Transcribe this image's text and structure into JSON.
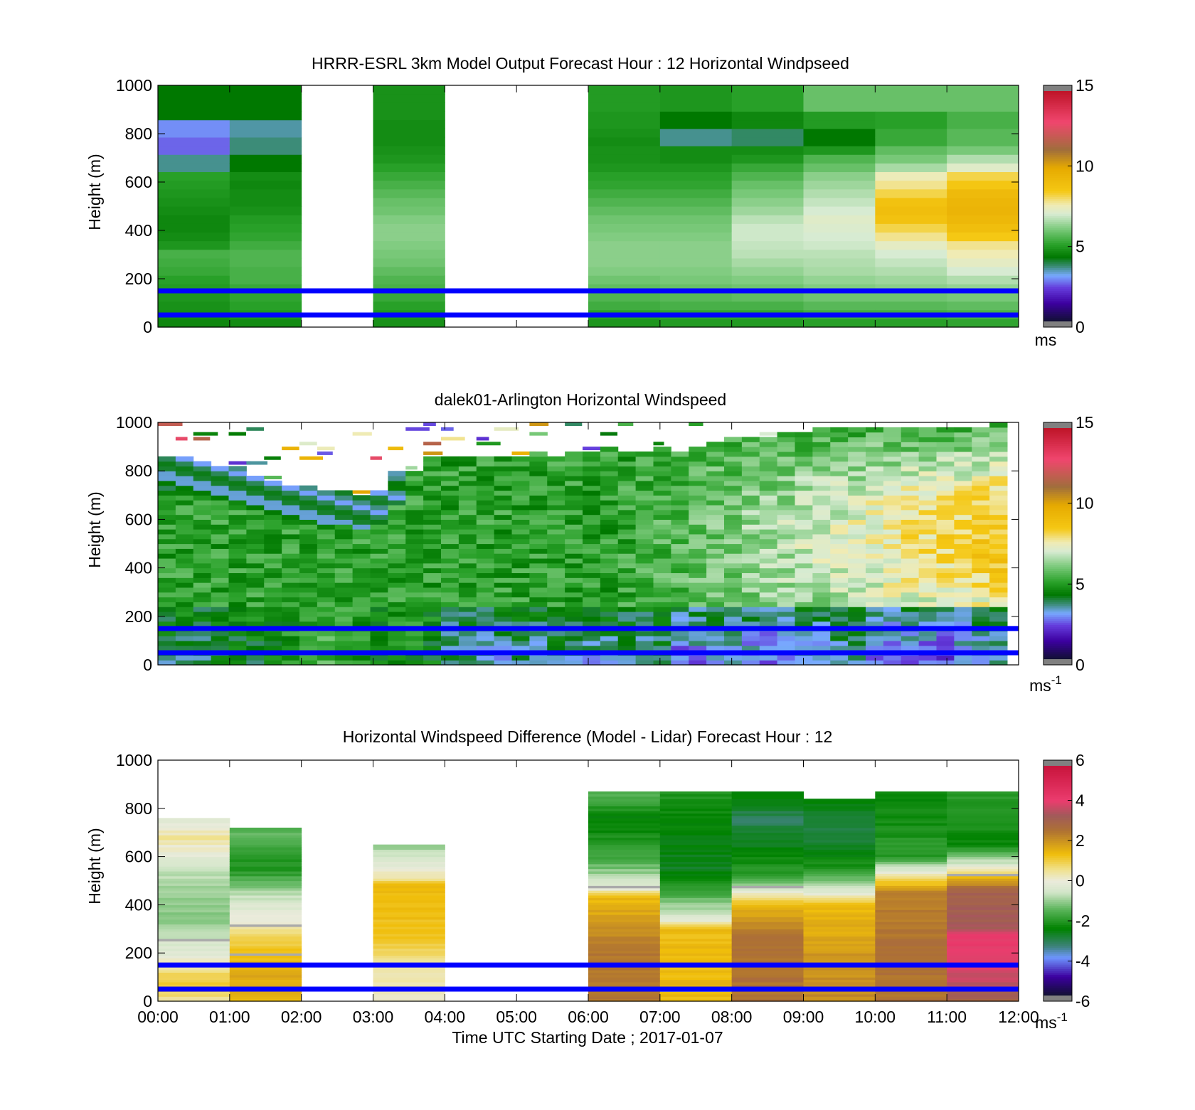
{
  "figure": {
    "xlabel": "Time UTC  Starting Date ; 2017-01-07"
  },
  "colors": {
    "blue_line": "#0000ff",
    "frame": "#000000"
  },
  "chart_data": [
    {
      "type": "heatmap",
      "title": "HRRR-ESRL 3km Model Output   Forecast Hour : 12 Horizontal Windpseed",
      "ylabel": "Height (m)",
      "ylim": [
        0,
        1000
      ],
      "yticks": [
        "0",
        "200",
        "400",
        "600",
        "800",
        "1000"
      ],
      "x_range": [
        "00:00",
        "12:00"
      ],
      "colorbar": {
        "min": 0,
        "max": 15,
        "ticks": [
          "0",
          "5",
          "10",
          "15"
        ],
        "unit_label": "ms",
        "scale": "wind"
      },
      "reference_lines_m": [
        50,
        150
      ],
      "columns": [
        {
          "start": "00:00",
          "end": "01:00",
          "top_m": 1000,
          "z": [
            4.5,
            4.6,
            4.7,
            4.8,
            4.9,
            5.0,
            5.2,
            5.3,
            5.4,
            4.8,
            4.6,
            4.5,
            4.5,
            4.6,
            4.7,
            4.8,
            4.9,
            5.0,
            3.5,
            3.5,
            2.5,
            2.5,
            2.8,
            2.8,
            4.2,
            4.2,
            4.2,
            4.2
          ]
        },
        {
          "start": "01:00",
          "end": "02:00",
          "top_m": 1000,
          "z": [
            4.6,
            4.8,
            5.0,
            5.1,
            5.2,
            5.4,
            5.4,
            5.5,
            5.5,
            5.3,
            5.1,
            5.0,
            4.9,
            4.7,
            4.6,
            4.6,
            4.5,
            4.6,
            4.2,
            4.2,
            3.6,
            3.6,
            3.4,
            3.4,
            4.2,
            4.2,
            4.2,
            4.2
          ]
        },
        {
          "start": "02:00",
          "end": "03:00",
          "top_m": 0,
          "z": []
        },
        {
          "start": "03:00",
          "end": "04:00",
          "top_m": 1000,
          "z": [
            4.7,
            4.8,
            5.0,
            5.2,
            5.4,
            5.5,
            5.7,
            5.9,
            6.0,
            6.1,
            6.2,
            6.2,
            6.1,
            5.9,
            5.8,
            5.6,
            5.4,
            5.2,
            5.0,
            4.8,
            4.7,
            4.6,
            4.6,
            4.6,
            4.7,
            4.7,
            4.7,
            4.7
          ]
        },
        {
          "start": "04:00",
          "end": "06:00",
          "top_m": 0,
          "z": []
        },
        {
          "start": "06:00",
          "end": "07:00",
          "top_m": 1000,
          "z": [
            4.8,
            5.0,
            5.3,
            5.5,
            5.7,
            5.9,
            6.1,
            6.2,
            6.2,
            6.2,
            6.1,
            6.0,
            5.9,
            5.7,
            5.5,
            5.3,
            5.1,
            5.0,
            4.8,
            4.7,
            4.7,
            4.6,
            4.7,
            4.8,
            4.8,
            4.9,
            4.9,
            4.9
          ]
        },
        {
          "start": "07:00",
          "end": "08:00",
          "top_m": 1000,
          "z": [
            4.9,
            5.1,
            5.4,
            5.6,
            5.8,
            6.0,
            6.1,
            6.2,
            6.2,
            6.2,
            6.1,
            6.0,
            5.9,
            5.7,
            5.5,
            5.3,
            5.1,
            5.0,
            4.8,
            4.6,
            4.6,
            3.5,
            3.5,
            4.2,
            4.2,
            4.8,
            4.8,
            4.8
          ]
        },
        {
          "start": "08:00",
          "end": "09:00",
          "top_m": 1000,
          "z": [
            4.9,
            5.1,
            5.4,
            5.7,
            5.9,
            6.1,
            6.3,
            6.5,
            6.7,
            6.8,
            6.9,
            6.9,
            6.7,
            6.4,
            6.2,
            6.0,
            5.8,
            5.5,
            5.2,
            4.8,
            4.6,
            3.7,
            3.7,
            4.5,
            4.5,
            5.0,
            5.0,
            5.0
          ]
        },
        {
          "start": "09:00",
          "end": "10:00",
          "top_m": 1000,
          "z": [
            5.0,
            5.3,
            5.6,
            5.9,
            6.1,
            6.3,
            6.5,
            6.6,
            6.7,
            6.9,
            7.0,
            7.1,
            7.2,
            7.0,
            6.8,
            6.6,
            6.4,
            6.2,
            5.8,
            5.5,
            4.8,
            4.2,
            4.2,
            4.9,
            4.9,
            5.8,
            5.8,
            5.8
          ]
        },
        {
          "start": "10:00",
          "end": "11:00",
          "top_m": 1000,
          "z": [
            5.0,
            5.3,
            5.6,
            5.9,
            6.2,
            6.4,
            6.6,
            6.8,
            7.0,
            7.3,
            7.8,
            8.2,
            8.8,
            9.0,
            8.8,
            8.2,
            7.8,
            7.5,
            6.5,
            6.0,
            5.7,
            5.2,
            5.2,
            5.0,
            5.0,
            5.8,
            5.8,
            5.8
          ]
        },
        {
          "start": "11:00",
          "end": "12:00",
          "top_m": 1000,
          "z": [
            5.1,
            5.4,
            5.7,
            6.0,
            6.3,
            6.6,
            7.0,
            7.3,
            7.6,
            7.8,
            8.5,
            9.0,
            9.3,
            9.5,
            9.4,
            9.2,
            8.6,
            8.2,
            7.2,
            6.6,
            6.0,
            5.6,
            5.6,
            5.4,
            5.4,
            5.8,
            5.8,
            5.8
          ]
        }
      ]
    },
    {
      "type": "heatmap",
      "title": "dalek01-Arlington  Horizontal Windspeed",
      "ylabel": "Height (m)",
      "ylim": [
        0,
        1000
      ],
      "yticks": [
        "0",
        "200",
        "400",
        "600",
        "800",
        "1000"
      ],
      "x_range": [
        "00:00",
        "12:00"
      ],
      "colorbar": {
        "min": 0,
        "max": 15,
        "ticks": [
          "0",
          "5",
          "10",
          "15"
        ],
        "unit_label": "ms",
        "unit_exponent": "-1",
        "scale": "wind"
      },
      "reference_lines_m": [
        50,
        150
      ],
      "profile_interval_minutes": 15,
      "columns_top_m": [
        860,
        860,
        850,
        830,
        830,
        790,
        770,
        750,
        750,
        730,
        720,
        710,
        720,
        800,
        810,
        860,
        860,
        870,
        870,
        860,
        870,
        880,
        870,
        890,
        890,
        910,
        880,
        890,
        900,
        880,
        900,
        930,
        940,
        940,
        950,
        960,
        960,
        980,
        990,
        980,
        980,
        990,
        990,
        990,
        990,
        990,
        990,
        1000
      ],
      "low_level_mean_ms": [
        3.6,
        3.8,
        3.5,
        3.9,
        4.0,
        4.1,
        4.4,
        4.6,
        5.2,
        5.4,
        5.2,
        4.8,
        4.4,
        4.5,
        4.6,
        4.3,
        3.4,
        3.2,
        3.3,
        3.2,
        3.4,
        3.3,
        3.6,
        3.3,
        3.1,
        3.4,
        3.5,
        3.3,
        3.6,
        2.4,
        2.6,
        2.8,
        3.0,
        2.6,
        2.4,
        2.8,
        3.0,
        2.9,
        3.3,
        3.4,
        2.7,
        2.3,
        2.5,
        2.2,
        2.1,
        2.6,
        2.9,
        3.1
      ]
    },
    {
      "type": "heatmap",
      "title": "Horizontal Windspeed Difference (Model - Lidar) Forecast Hour : 12",
      "ylabel": "Height (m)",
      "ylim": [
        0,
        1000
      ],
      "yticks": [
        "0",
        "200",
        "400",
        "600",
        "800",
        "1000"
      ],
      "xticks": [
        "00:00",
        "01:00",
        "02:00",
        "03:00",
        "04:00",
        "05:00",
        "06:00",
        "07:00",
        "08:00",
        "09:00",
        "10:00",
        "11:00",
        "12:00"
      ],
      "colorbar": {
        "min": -6,
        "max": 6,
        "ticks": [
          "-6",
          "-4",
          "-2",
          "0",
          "2",
          "4",
          "6"
        ],
        "unit_label": "ms",
        "unit_exponent": "-1",
        "scale": "diff"
      },
      "reference_lines_m": [
        50,
        150
      ],
      "columns": [
        {
          "start": "00:00",
          "end": "01:00",
          "top_m": 760,
          "profile": [
            [
              0,
              0.5
            ],
            [
              80,
              1.2
            ],
            [
              200,
              -0.2
            ],
            [
              350,
              -1.2
            ],
            [
              550,
              -0.7
            ],
            [
              680,
              0.5
            ],
            [
              760,
              -0.5
            ]
          ]
        },
        {
          "start": "01:00",
          "end": "02:00",
          "top_m": 720,
          "profile": [
            [
              0,
              1.5
            ],
            [
              120,
              1.8
            ],
            [
              280,
              0.8
            ],
            [
              340,
              0.0
            ],
            [
              450,
              -0.8
            ],
            [
              550,
              -2.2
            ],
            [
              700,
              -1.5
            ]
          ]
        },
        {
          "start": "02:00",
          "end": "03:00",
          "top_m": 0,
          "profile": []
        },
        {
          "start": "03:00",
          "end": "04:00",
          "top_m": 650,
          "profile": [
            [
              0,
              0.2
            ],
            [
              150,
              0.4
            ],
            [
              250,
              1.2
            ],
            [
              480,
              1.5
            ],
            [
              520,
              0.3
            ],
            [
              640,
              -1.0
            ]
          ]
        },
        {
          "start": "04:00",
          "end": "06:00",
          "top_m": 0,
          "profile": []
        },
        {
          "start": "06:00",
          "end": "07:00",
          "top_m": 870,
          "profile": [
            [
              0,
              2.5
            ],
            [
              200,
              2.6
            ],
            [
              440,
              1.4
            ],
            [
              470,
              -0.3
            ],
            [
              600,
              -1.8
            ],
            [
              750,
              -2.6
            ],
            [
              860,
              -1.5
            ]
          ]
        },
        {
          "start": "07:00",
          "end": "08:00",
          "top_m": 870,
          "profile": [
            [
              0,
              1.5
            ],
            [
              300,
              1.4
            ],
            [
              340,
              -0.2
            ],
            [
              450,
              -1.8
            ],
            [
              550,
              -2.8
            ],
            [
              860,
              -2.2
            ]
          ]
        },
        {
          "start": "08:00",
          "end": "09:00",
          "top_m": 870,
          "profile": [
            [
              0,
              2.6
            ],
            [
              250,
              2.7
            ],
            [
              400,
              1.5
            ],
            [
              450,
              0.0
            ],
            [
              520,
              -2.0
            ],
            [
              750,
              -3.2
            ],
            [
              860,
              -2.5
            ]
          ]
        },
        {
          "start": "09:00",
          "end": "10:00",
          "top_m": 840,
          "profile": [
            [
              0,
              2.2
            ],
            [
              200,
              2.0
            ],
            [
              400,
              1.4
            ],
            [
              450,
              -0.2
            ],
            [
              550,
              -2.2
            ],
            [
              700,
              -3.0
            ],
            [
              830,
              -2.6
            ]
          ]
        },
        {
          "start": "10:00",
          "end": "11:00",
          "top_m": 870,
          "profile": [
            [
              0,
              2.6
            ],
            [
              200,
              2.7
            ],
            [
              450,
              2.4
            ],
            [
              520,
              0.4
            ],
            [
              600,
              -2.0
            ],
            [
              860,
              -2.5
            ]
          ]
        },
        {
          "start": "11:00",
          "end": "12:00",
          "top_m": 870,
          "profile": [
            [
              0,
              3.0
            ],
            [
              150,
              4.2
            ],
            [
              280,
              4.3
            ],
            [
              300,
              3.4
            ],
            [
              450,
              3.2
            ],
            [
              520,
              1.5
            ],
            [
              560,
              -0.2
            ],
            [
              650,
              -2.4
            ],
            [
              860,
              -2.0
            ]
          ]
        }
      ]
    }
  ]
}
